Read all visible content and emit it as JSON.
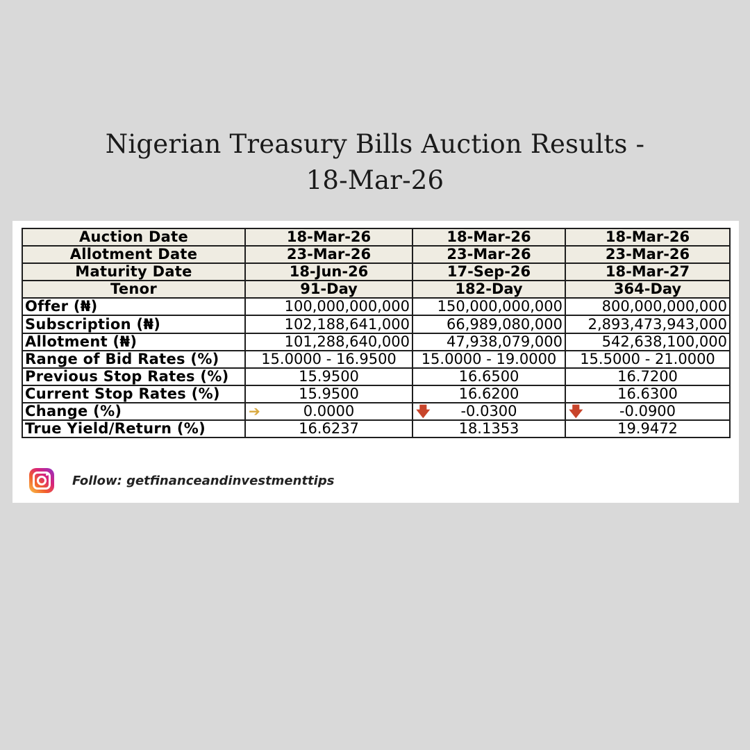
{
  "title": {
    "line1": "Nigerian Treasury Bills Auction Results -",
    "line2": "18-Mar-26"
  },
  "table": {
    "header_rows": [
      {
        "label": "Auction Date",
        "values": [
          "18-Mar-26",
          "18-Mar-26",
          "18-Mar-26"
        ]
      },
      {
        "label": "Allotment Date",
        "values": [
          "23-Mar-26",
          "23-Mar-26",
          "23-Mar-26"
        ]
      },
      {
        "label": "Maturity Date",
        "values": [
          "18-Jun-26",
          "17-Sep-26",
          "18-Mar-27"
        ]
      },
      {
        "label": "Tenor",
        "values": [
          "91-Day",
          "182-Day",
          "364-Day"
        ]
      }
    ],
    "amount_rows": [
      {
        "label": "Offer (₦)",
        "values": [
          "100,000,000,000",
          "150,000,000,000",
          "800,000,000,000"
        ]
      },
      {
        "label": "Subscription (₦)",
        "values": [
          "102,188,641,000",
          "66,989,080,000",
          "2,893,473,943,000"
        ]
      },
      {
        "label": "Allotment (₦)",
        "values": [
          "101,288,640,000",
          "47,938,079,000",
          "542,638,100,000"
        ]
      }
    ],
    "rate_rows": [
      {
        "label": "Range of Bid Rates (%)",
        "values": [
          "15.0000 - 16.9500",
          "15.0000 - 19.0000",
          "15.5000 - 21.0000"
        ]
      },
      {
        "label": "Previous Stop Rates (%)",
        "values": [
          "15.9500",
          "16.6500",
          "16.7200"
        ]
      },
      {
        "label": "Current Stop Rates (%)",
        "values": [
          "15.9500",
          "16.6200",
          "16.6300"
        ]
      }
    ],
    "change_row": {
      "label": "Change (%)",
      "values": [
        "0.0000",
        "-0.0300",
        "-0.0900"
      ],
      "icons": [
        "➔",
        "🡇",
        "🡇"
      ],
      "icon_names": [
        "arrow-right-icon",
        "arrow-down-icon",
        "arrow-down-icon"
      ]
    },
    "yield_row": {
      "label": "True Yield/Return (%)",
      "values": [
        "16.6237",
        "18.1353",
        "19.9472"
      ]
    }
  },
  "footer": {
    "icon": "instagram-icon",
    "text": "Follow: getfinanceandinvestmenttips"
  },
  "colors": {
    "background": "#d9d9d9",
    "header_fill": "#efece2",
    "arrow_flat": "#d9a93f",
    "arrow_down": "#c8442a"
  }
}
